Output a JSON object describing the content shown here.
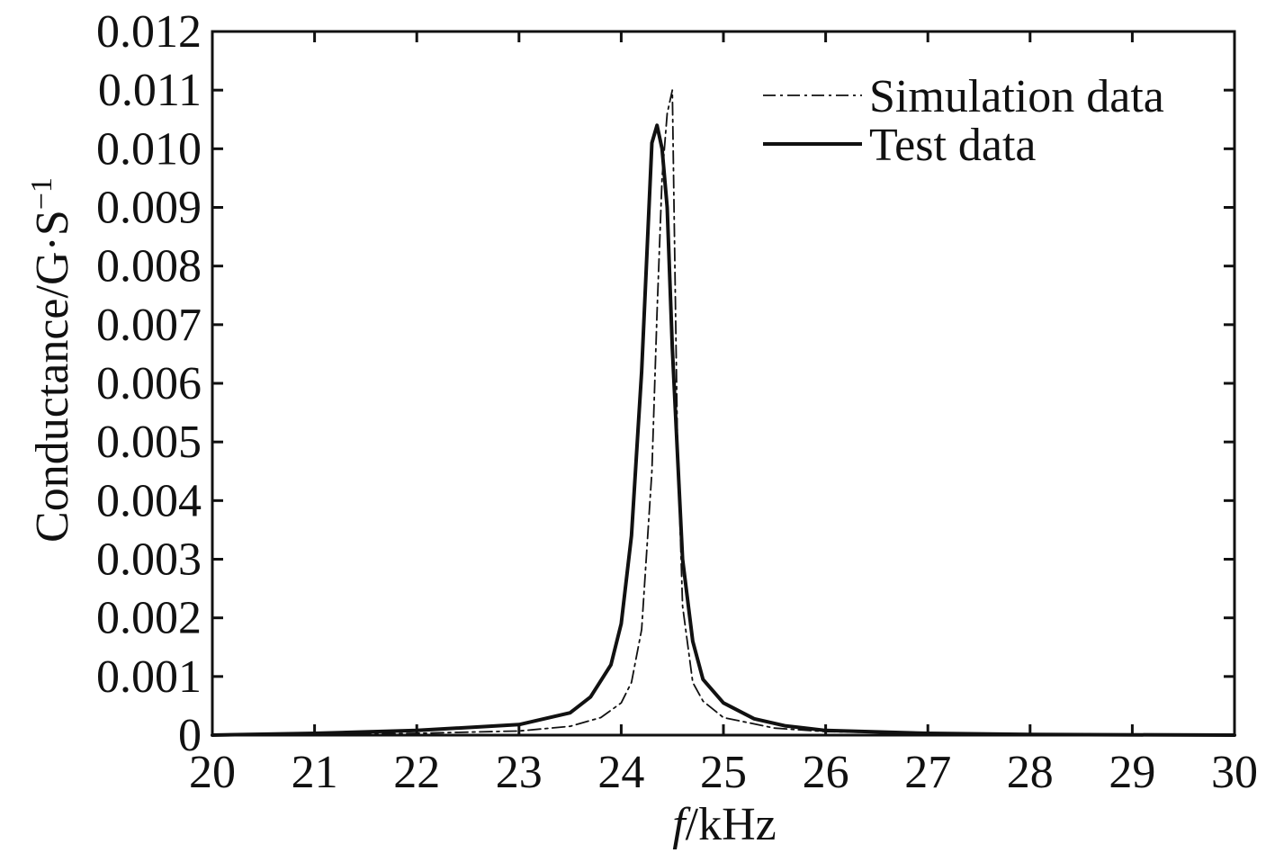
{
  "chart_data": {
    "type": "line",
    "title": "",
    "xlabel_italic": "f",
    "xlabel_rest": "/kHz",
    "ylabel_main": "Conductance/G·S",
    "ylabel_sup": "−1",
    "xlim": [
      20,
      30
    ],
    "ylim": [
      0,
      0.012
    ],
    "x_ticks": [
      "20",
      "21",
      "22",
      "23",
      "24",
      "25",
      "26",
      "27",
      "28",
      "29",
      "30"
    ],
    "y_ticks": [
      "0",
      "0.001",
      "0.002",
      "0.003",
      "0.004",
      "0.005",
      "0.006",
      "0.007",
      "0.008",
      "0.009",
      "0.010",
      "0.011",
      "0.012"
    ],
    "grid": false,
    "legend_position": "top-right",
    "series": [
      {
        "name": "Simulation data",
        "style": "dashdot",
        "color": "#111111",
        "x": [
          20.0,
          21.0,
          22.0,
          23.0,
          23.5,
          23.8,
          24.0,
          24.1,
          24.2,
          24.3,
          24.35,
          24.4,
          24.45,
          24.5,
          24.55,
          24.6,
          24.7,
          24.8,
          25.0,
          25.5,
          26.0,
          27.0,
          28.0,
          30.0
        ],
        "y": [
          0.0,
          1e-05,
          3e-05,
          7e-05,
          0.00015,
          0.0003,
          0.00055,
          0.0009,
          0.0018,
          0.0045,
          0.0072,
          0.0095,
          0.0106,
          0.011,
          0.005,
          0.0022,
          0.0009,
          0.00058,
          0.0003,
          0.00012,
          6e-05,
          3e-05,
          1e-05,
          0.0
        ]
      },
      {
        "name": "Test data",
        "style": "solid",
        "color": "#111111",
        "x": [
          20.0,
          21.0,
          22.0,
          23.0,
          23.5,
          23.7,
          23.9,
          24.0,
          24.1,
          24.2,
          24.3,
          24.35,
          24.4,
          24.45,
          24.5,
          24.6,
          24.7,
          24.8,
          25.0,
          25.3,
          25.6,
          26.0,
          27.0,
          28.0,
          30.0
        ],
        "y": [
          0.0,
          3e-05,
          8e-05,
          0.00018,
          0.00038,
          0.00065,
          0.0012,
          0.0019,
          0.0034,
          0.0062,
          0.0101,
          0.0104,
          0.01,
          0.009,
          0.0066,
          0.003,
          0.0016,
          0.00095,
          0.00055,
          0.00028,
          0.00016,
          8e-05,
          3e-05,
          1e-05,
          0.0
        ]
      }
    ]
  }
}
